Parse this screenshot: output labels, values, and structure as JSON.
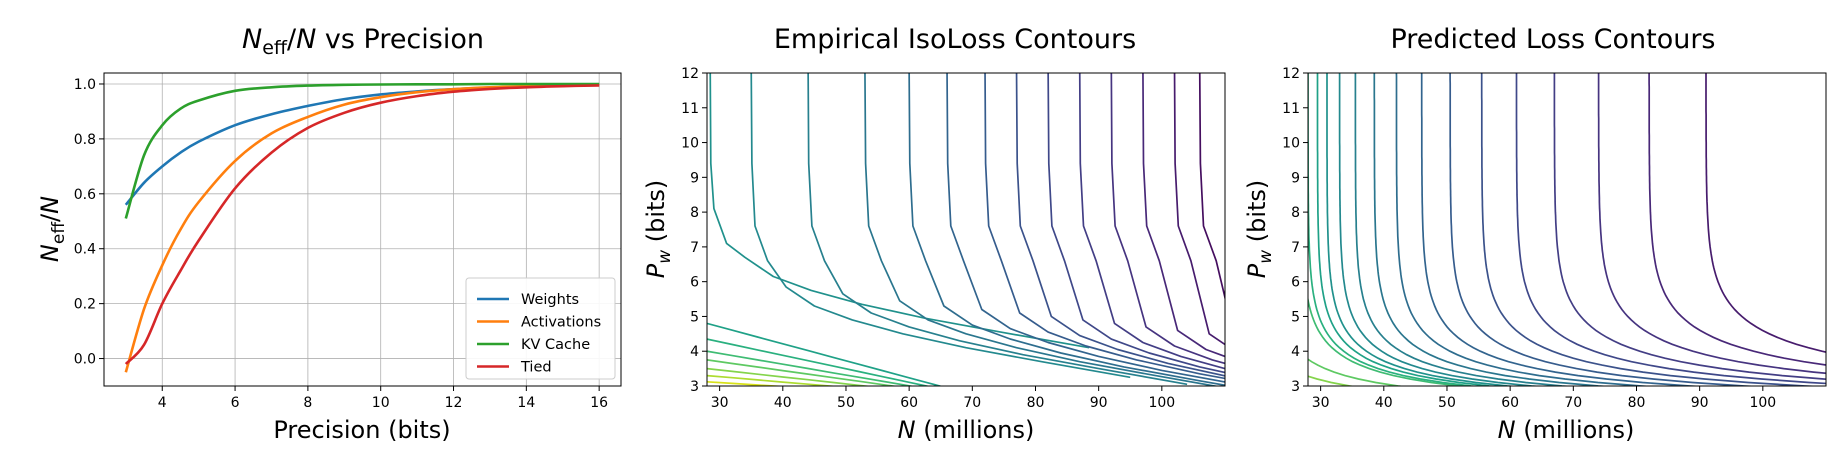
{
  "chart_data": [
    {
      "type": "line",
      "title": "N_eff/N vs Precision",
      "title_parts": {
        "sym1": "N",
        "sub1": "eff",
        "slash": "/",
        "sym2": "N",
        "rest": " vs Precision"
      },
      "xlabel": "Precision (bits)",
      "ylabel_parts": {
        "sym1": "N",
        "sub1": "eff",
        "slash": "/",
        "sym2": "N"
      },
      "xlim": [
        2.4,
        16.6
      ],
      "ylim": [
        -0.1,
        1.04
      ],
      "xticks": [
        4,
        6,
        8,
        10,
        12,
        14,
        16
      ],
      "yticks": [
        0.0,
        0.2,
        0.4,
        0.6,
        0.8,
        1.0
      ],
      "xtick_labels": [
        "4",
        "6",
        "8",
        "10",
        "12",
        "14",
        "16"
      ],
      "ytick_labels": [
        "0.0",
        "0.2",
        "0.4",
        "0.6",
        "0.8",
        "1.0"
      ],
      "grid": true,
      "legend_position": "lower-right",
      "x": [
        3,
        3.5,
        4,
        4.5,
        5,
        6,
        7,
        8,
        9,
        10,
        11,
        12,
        13,
        14,
        15,
        16
      ],
      "series": [
        {
          "name": "Weights",
          "color": "#1f77b4",
          "values": [
            0.56,
            0.64,
            0.7,
            0.75,
            0.79,
            0.85,
            0.89,
            0.92,
            0.945,
            0.962,
            0.973,
            0.981,
            0.987,
            0.991,
            0.994,
            0.996
          ]
        },
        {
          "name": "Activations",
          "color": "#ff7f0e",
          "values": [
            -0.05,
            0.18,
            0.34,
            0.47,
            0.57,
            0.72,
            0.82,
            0.88,
            0.925,
            0.952,
            0.97,
            0.981,
            0.988,
            0.992,
            0.995,
            0.997
          ]
        },
        {
          "name": "KV Cache",
          "color": "#2ca02c",
          "values": [
            0.51,
            0.74,
            0.85,
            0.91,
            0.94,
            0.975,
            0.988,
            0.994,
            0.997,
            0.998,
            0.999,
            0.999,
            1.0,
            1.0,
            1.0,
            1.0
          ]
        },
        {
          "name": "Tied",
          "color": "#d62728",
          "values": [
            -0.02,
            0.05,
            0.2,
            0.32,
            0.43,
            0.62,
            0.75,
            0.84,
            0.895,
            0.932,
            0.956,
            0.972,
            0.982,
            0.988,
            0.992,
            0.995
          ]
        }
      ]
    },
    {
      "type": "contour",
      "title": "Empirical IsoLoss Contours",
      "xlabel_parts": {
        "sym": "N",
        "rest": " (millions)"
      },
      "ylabel_parts": {
        "sym": "P",
        "sub": "w",
        "rest": " (bits)"
      },
      "xlim": [
        28,
        110
      ],
      "ylim": [
        3,
        12
      ],
      "xticks": [
        30,
        40,
        50,
        60,
        70,
        80,
        90,
        100
      ],
      "yticks": [
        3,
        4,
        5,
        6,
        7,
        8,
        9,
        10,
        11,
        12
      ],
      "xtick_labels": [
        "30",
        "40",
        "50",
        "60",
        "70",
        "80",
        "90",
        "100"
      ],
      "ytick_labels": [
        "3",
        "4",
        "5",
        "6",
        "7",
        "8",
        "9",
        "10",
        "11",
        "12"
      ],
      "colormap": "viridis",
      "levels": [
        {
          "x_vertical": 28.5,
          "floor": 5.8,
          "color": "#20918c"
        },
        {
          "x_vertical": 35,
          "floor": 4.95,
          "color": "#23898e"
        },
        {
          "x_vertical": 44,
          "floor": 4.75,
          "color": "#27808e"
        },
        {
          "x_vertical": 53,
          "floor": 4.55,
          "color": "#2a768e"
        },
        {
          "x_vertical": 60,
          "floor": 4.4,
          "color": "#2e6d8e"
        },
        {
          "x_vertical": 66,
          "floor": 4.3,
          "color": "#32648e"
        },
        {
          "x_vertical": 72,
          "floor": 4.2,
          "color": "#365c8d"
        },
        {
          "x_vertical": 77,
          "floor": 4.1,
          "color": "#3b528b"
        },
        {
          "x_vertical": 82,
          "floor": 4.0,
          "color": "#3f4889"
        },
        {
          "x_vertical": 87,
          "floor": 3.9,
          "color": "#433e85"
        },
        {
          "x_vertical": 92,
          "floor": 3.8,
          "color": "#463480"
        },
        {
          "x_vertical": 97,
          "floor": 3.7,
          "color": "#482878"
        },
        {
          "x_vertical": 102,
          "floor": 3.6,
          "color": "#471c6d"
        },
        {
          "x_vertical": 106,
          "floor": 3.5,
          "color": "#450e5f"
        }
      ],
      "low_levels": [
        {
          "y0": 4.8,
          "color": "#1fa187"
        },
        {
          "y0": 4.35,
          "color": "#2ab07f"
        },
        {
          "y0": 4.0,
          "color": "#3fbc73"
        },
        {
          "y0": 3.75,
          "color": "#5ec962"
        },
        {
          "y0": 3.5,
          "color": "#84d44b"
        },
        {
          "y0": 3.3,
          "color": "#addc30"
        },
        {
          "y0": 3.12,
          "color": "#d8e219"
        }
      ]
    },
    {
      "type": "contour",
      "title": "Predicted Loss Contours",
      "xlabel_parts": {
        "sym": "N",
        "rest": " (millions)"
      },
      "ylabel_parts": {
        "sym": "P",
        "sub": "w",
        "rest": " (bits)"
      },
      "xlim": [
        28,
        110
      ],
      "ylim": [
        3,
        12
      ],
      "xticks": [
        30,
        40,
        50,
        60,
        70,
        80,
        90,
        100
      ],
      "yticks": [
        3,
        4,
        5,
        6,
        7,
        8,
        9,
        10,
        11,
        12
      ],
      "xtick_labels": [
        "30",
        "40",
        "50",
        "60",
        "70",
        "80",
        "90",
        "100"
      ],
      "ytick_labels": [
        "3",
        "4",
        "5",
        "6",
        "7",
        "8",
        "9",
        "10",
        "11",
        "12"
      ],
      "colormap": "viridis",
      "levels": [
        {
          "a": 27.0,
          "color": "#3fbc73"
        },
        {
          "a": 28.0,
          "color": "#2ab07f"
        },
        {
          "a": 29.5,
          "color": "#1fa187"
        },
        {
          "a": 31.0,
          "color": "#20918c"
        },
        {
          "a": 33.0,
          "color": "#23898e"
        },
        {
          "a": 35.5,
          "color": "#27808e"
        },
        {
          "a": 38.5,
          "color": "#2a768e"
        },
        {
          "a": 42.0,
          "color": "#2e6d8e"
        },
        {
          "a": 46.0,
          "color": "#32648e"
        },
        {
          "a": 50.5,
          "color": "#365c8d"
        },
        {
          "a": 55.5,
          "color": "#3b528b"
        },
        {
          "a": 61.0,
          "color": "#3f4889"
        },
        {
          "a": 67.0,
          "color": "#433e85"
        },
        {
          "a": 74.0,
          "color": "#463480"
        },
        {
          "a": 82.0,
          "color": "#482878"
        },
        {
          "a": 91.0,
          "color": "#471c6d"
        }
      ],
      "low_levels": [
        {
          "a": 22.0,
          "color": "#5ec962"
        },
        {
          "a": 18.0,
          "color": "#84d44b"
        },
        {
          "a": 14.0,
          "color": "#addc30"
        },
        {
          "a": 10.0,
          "color": "#d8e219"
        }
      ]
    }
  ]
}
